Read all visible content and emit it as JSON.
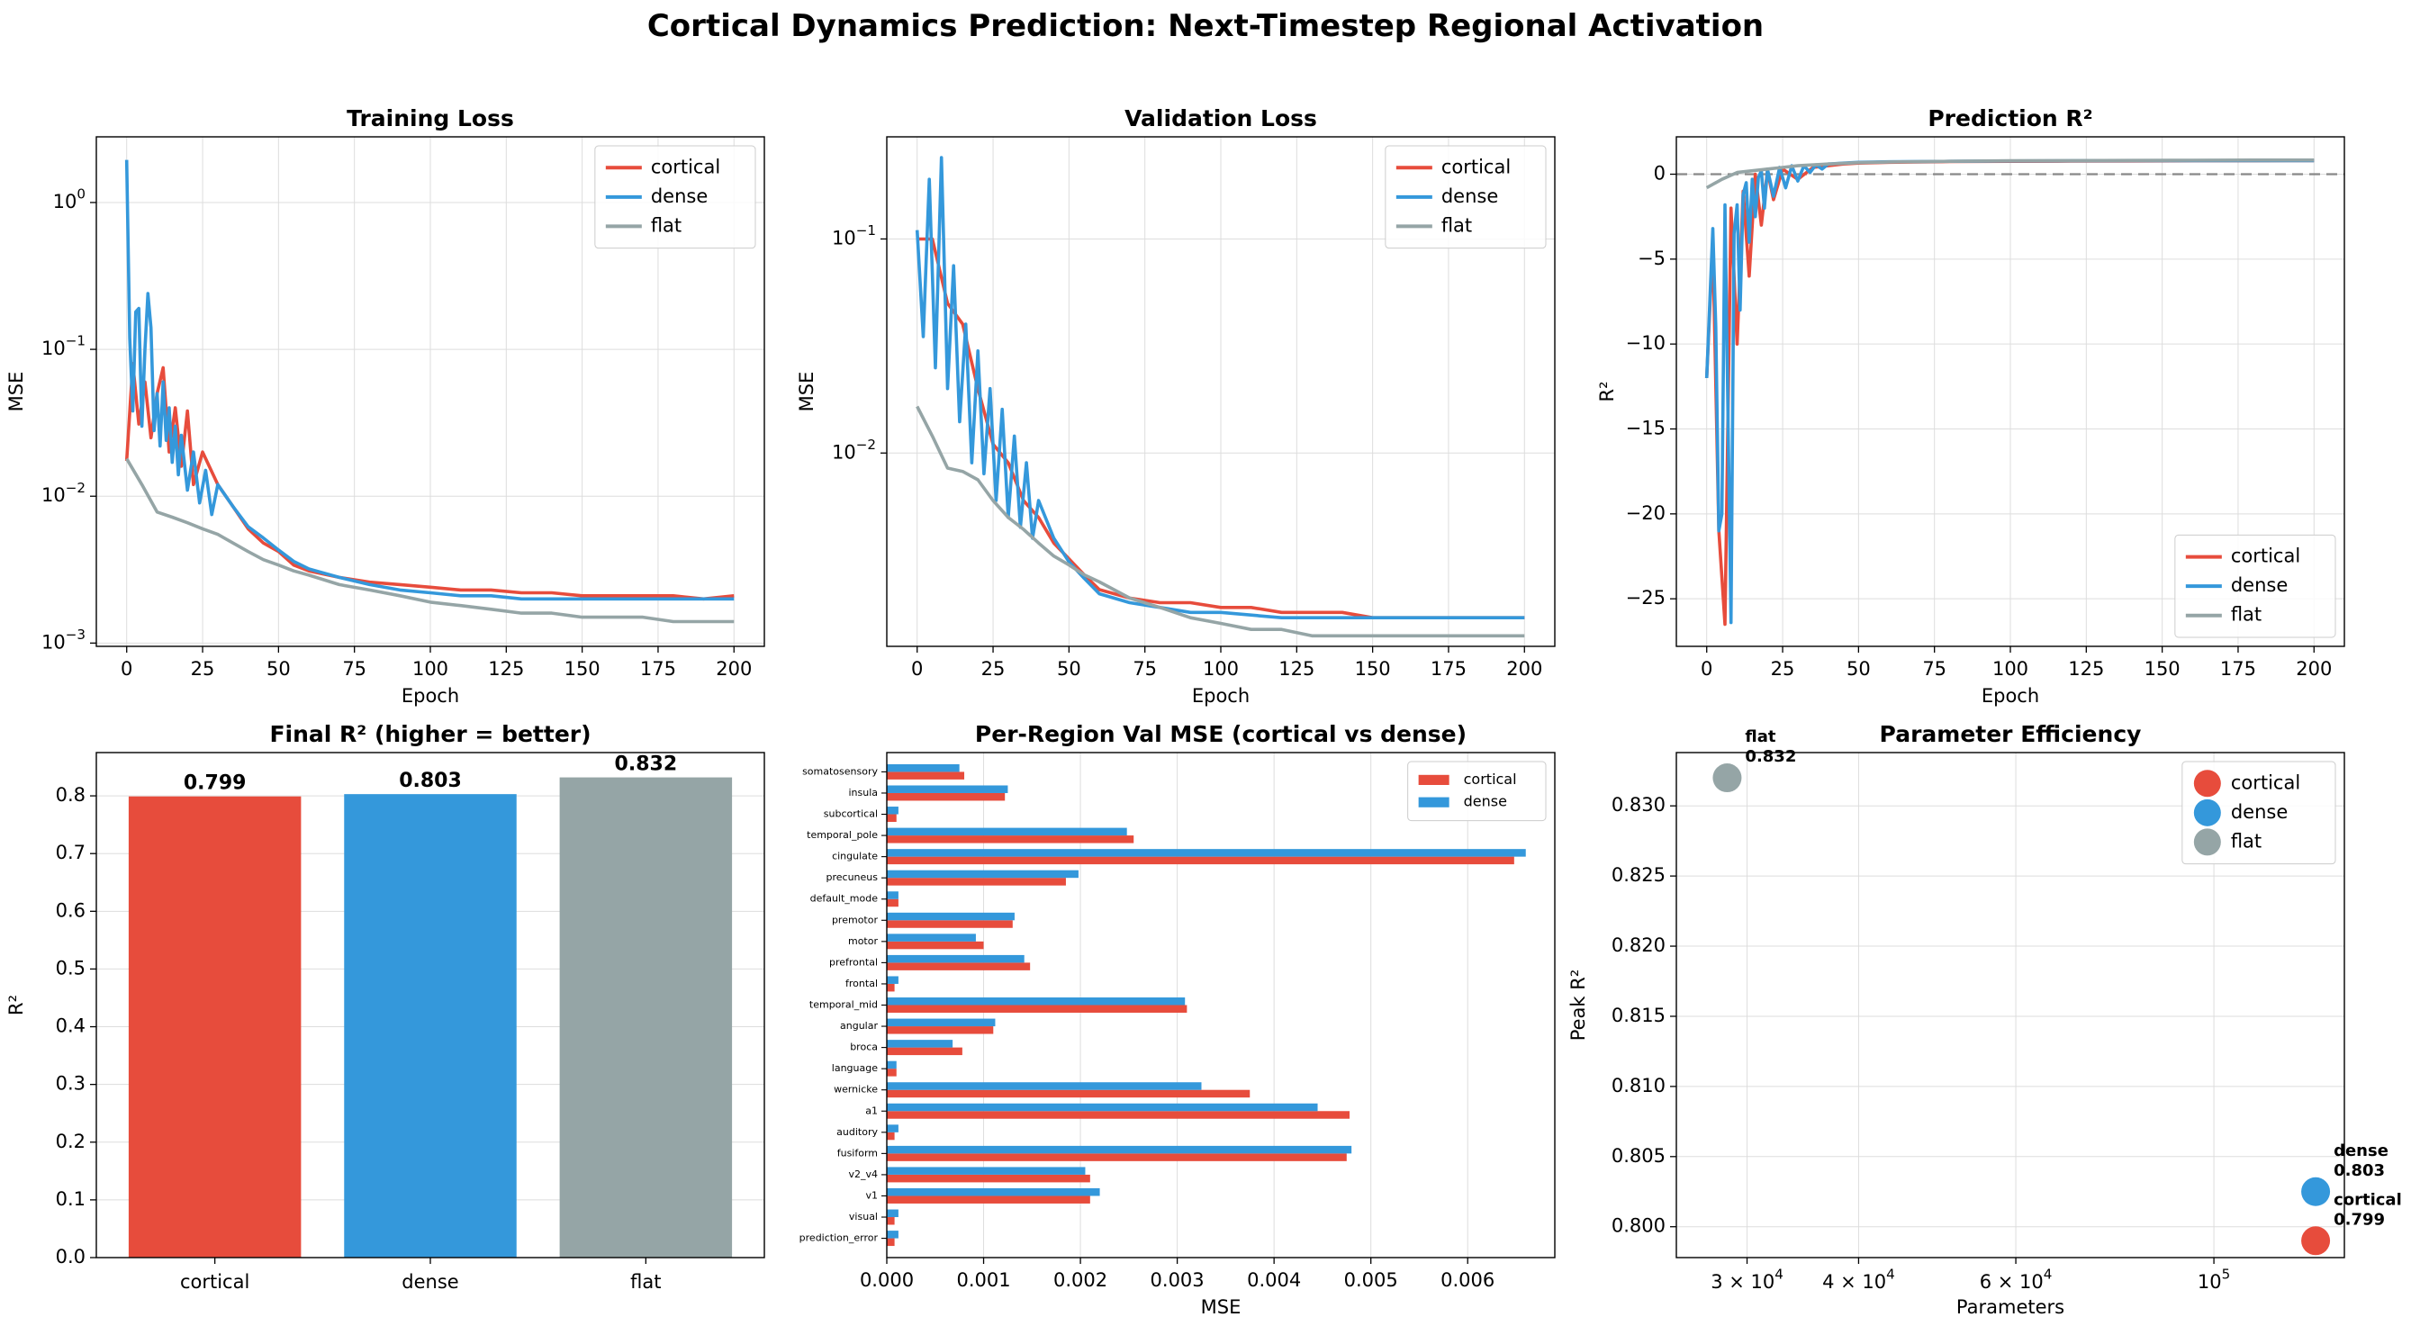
{
  "figure": {
    "suptitle": "Cortical Dynamics Prediction: Next-Timestep Regional Activation"
  },
  "colors": {
    "cortical": "#e74c3c",
    "dense": "#3498db",
    "flat": "#95a5a6",
    "grid": "#dddddd",
    "zero_line": "#888888"
  },
  "chart_data": [
    {
      "id": "training-loss",
      "type": "line",
      "title": "Training Loss",
      "xlabel": "Epoch",
      "ylabel": "MSE",
      "yscale": "log",
      "xlim": [
        -10,
        210
      ],
      "ylim": [
        0.00095,
        2.8
      ],
      "xticks": [
        0,
        25,
        50,
        75,
        100,
        125,
        150,
        175,
        200
      ],
      "yticks": [
        {
          "value": 1,
          "label": "10^0"
        },
        {
          "value": 0.1,
          "label": "10^-1"
        },
        {
          "value": 0.01,
          "label": "10^-2"
        },
        {
          "value": 0.001,
          "label": "10^-3"
        }
      ],
      "grid": true,
      "legend_position": "top-right",
      "series": [
        {
          "name": "cortical",
          "color": "cortical",
          "x": [
            0,
            2,
            4,
            6,
            8,
            10,
            12,
            14,
            16,
            18,
            20,
            22,
            25,
            30,
            35,
            40,
            45,
            50,
            55,
            60,
            70,
            80,
            90,
            100,
            110,
            120,
            130,
            140,
            150,
            160,
            170,
            180,
            190,
            200
          ],
          "y": [
            0.0174,
            0.08,
            0.031,
            0.06,
            0.025,
            0.05,
            0.075,
            0.02,
            0.04,
            0.016,
            0.038,
            0.012,
            0.02,
            0.012,
            0.0085,
            0.006,
            0.0048,
            0.0042,
            0.0034,
            0.0031,
            0.0028,
            0.0026,
            0.0025,
            0.0024,
            0.0023,
            0.0023,
            0.0022,
            0.0022,
            0.0021,
            0.0021,
            0.0021,
            0.0021,
            0.002,
            0.0021
          ]
        },
        {
          "name": "dense",
          "color": "dense",
          "x": [
            0,
            1,
            2,
            3,
            4,
            5,
            6,
            7,
            8,
            9,
            10,
            11,
            12,
            13,
            14,
            15,
            16,
            17,
            18,
            20,
            22,
            24,
            26,
            28,
            30,
            35,
            40,
            45,
            50,
            55,
            60,
            70,
            80,
            90,
            100,
            110,
            120,
            130,
            140,
            150,
            160,
            170,
            180,
            190,
            200
          ],
          "y": [
            1.95,
            0.12,
            0.038,
            0.18,
            0.19,
            0.03,
            0.1,
            0.24,
            0.14,
            0.028,
            0.05,
            0.022,
            0.06,
            0.024,
            0.04,
            0.017,
            0.03,
            0.014,
            0.026,
            0.011,
            0.02,
            0.009,
            0.015,
            0.0075,
            0.012,
            0.0085,
            0.0062,
            0.0052,
            0.0043,
            0.0036,
            0.0032,
            0.0028,
            0.0025,
            0.0023,
            0.0022,
            0.0021,
            0.0021,
            0.002,
            0.002,
            0.002,
            0.002,
            0.002,
            0.002,
            0.002,
            0.002
          ]
        },
        {
          "name": "flat",
          "color": "flat",
          "x": [
            0,
            5,
            10,
            15,
            20,
            25,
            30,
            35,
            40,
            45,
            50,
            55,
            60,
            70,
            80,
            90,
            100,
            110,
            120,
            130,
            140,
            150,
            160,
            170,
            180,
            190,
            200
          ],
          "y": [
            0.018,
            0.012,
            0.0078,
            0.0072,
            0.0066,
            0.006,
            0.0055,
            0.0048,
            0.0042,
            0.0037,
            0.0034,
            0.0031,
            0.0029,
            0.0025,
            0.0023,
            0.0021,
            0.0019,
            0.0018,
            0.0017,
            0.0016,
            0.0016,
            0.0015,
            0.0015,
            0.0015,
            0.0014,
            0.0014,
            0.0014
          ]
        }
      ]
    },
    {
      "id": "validation-loss",
      "type": "line",
      "title": "Validation Loss",
      "xlabel": "Epoch",
      "ylabel": "MSE",
      "yscale": "log",
      "xlim": [
        -10,
        210
      ],
      "ylim": [
        0.00125,
        0.3
      ],
      "xticks": [
        0,
        25,
        50,
        75,
        100,
        125,
        150,
        175,
        200
      ],
      "yticks": [
        {
          "value": 0.1,
          "label": "10^-1"
        },
        {
          "value": 0.01,
          "label": "10^-2"
        }
      ],
      "grid": true,
      "legend_position": "top-right",
      "series": [
        {
          "name": "cortical",
          "color": "cortical",
          "x": [
            0,
            5,
            10,
            15,
            20,
            25,
            30,
            35,
            40,
            45,
            50,
            55,
            60,
            70,
            80,
            90,
            100,
            110,
            120,
            130,
            140,
            150,
            160,
            170,
            180,
            190,
            200
          ],
          "y": [
            0.1,
            0.1,
            0.05,
            0.04,
            0.02,
            0.011,
            0.009,
            0.006,
            0.005,
            0.0038,
            0.0032,
            0.0027,
            0.0023,
            0.0021,
            0.002,
            0.002,
            0.0019,
            0.0019,
            0.0018,
            0.0018,
            0.0018,
            0.0017,
            0.0017,
            0.0017,
            0.0017,
            0.0017,
            0.0017
          ]
        },
        {
          "name": "dense",
          "color": "dense",
          "x": [
            0,
            2,
            4,
            6,
            8,
            10,
            12,
            14,
            16,
            18,
            20,
            22,
            24,
            26,
            28,
            30,
            32,
            34,
            36,
            38,
            40,
            45,
            50,
            55,
            60,
            70,
            80,
            90,
            100,
            120,
            140,
            160,
            180,
            200
          ],
          "y": [
            0.11,
            0.035,
            0.19,
            0.025,
            0.24,
            0.02,
            0.075,
            0.014,
            0.04,
            0.009,
            0.03,
            0.008,
            0.02,
            0.006,
            0.016,
            0.005,
            0.012,
            0.0045,
            0.009,
            0.004,
            0.006,
            0.004,
            0.0031,
            0.0026,
            0.0022,
            0.002,
            0.0019,
            0.0018,
            0.0018,
            0.0017,
            0.0017,
            0.0017,
            0.0017,
            0.0017
          ]
        },
        {
          "name": "flat",
          "color": "flat",
          "x": [
            0,
            5,
            10,
            15,
            20,
            25,
            30,
            35,
            40,
            45,
            50,
            55,
            60,
            70,
            80,
            90,
            100,
            110,
            120,
            130,
            140,
            150,
            160,
            170,
            180,
            190,
            200
          ],
          "y": [
            0.0165,
            0.012,
            0.0085,
            0.0082,
            0.0075,
            0.006,
            0.005,
            0.0044,
            0.0038,
            0.0033,
            0.003,
            0.0027,
            0.0025,
            0.0021,
            0.0019,
            0.0017,
            0.0016,
            0.0015,
            0.0015,
            0.0014,
            0.0014,
            0.0014,
            0.0014,
            0.0014,
            0.0014,
            0.0014,
            0.0014
          ]
        }
      ]
    },
    {
      "id": "prediction-r2",
      "type": "line",
      "title": "Prediction R²",
      "xlabel": "Epoch",
      "ylabel": "R²",
      "yscale": "linear",
      "xlim": [
        -10,
        210
      ],
      "ylim": [
        -27.8,
        2.2
      ],
      "xticks": [
        0,
        25,
        50,
        75,
        100,
        125,
        150,
        175,
        200
      ],
      "yticks": [
        {
          "value": 0,
          "label": "0"
        },
        {
          "value": -5,
          "label": "−5"
        },
        {
          "value": -10,
          "label": "−10"
        },
        {
          "value": -15,
          "label": "−15"
        },
        {
          "value": -20,
          "label": "−20"
        },
        {
          "value": -25,
          "label": "−25"
        }
      ],
      "grid": true,
      "reference_line": 0,
      "legend_position": "bottom-right",
      "series": [
        {
          "name": "cortical",
          "color": "cortical",
          "x": [
            0,
            2,
            4,
            6,
            8,
            10,
            12,
            14,
            16,
            18,
            20,
            22,
            25,
            30,
            35,
            40,
            45,
            50,
            60,
            80,
            100,
            120,
            140,
            160,
            180,
            200
          ],
          "y": [
            -12,
            -4,
            -21,
            -26.5,
            -2,
            -10,
            -1,
            -6,
            0,
            -3,
            0.2,
            -1.5,
            0.3,
            -0.3,
            0.4,
            0.5,
            0.6,
            0.65,
            0.7,
            0.74,
            0.76,
            0.77,
            0.78,
            0.79,
            0.79,
            0.8
          ]
        },
        {
          "name": "dense",
          "color": "dense",
          "x": [
            0,
            2,
            3,
            4,
            5,
            6,
            7,
            8,
            9,
            10,
            11,
            12,
            13,
            14,
            15,
            16,
            17,
            18,
            19,
            20,
            22,
            24,
            26,
            28,
            30,
            32,
            34,
            36,
            38,
            40,
            45,
            50,
            60,
            80,
            100,
            120,
            140,
            160,
            180,
            200
          ],
          "y": [
            -12,
            -3.2,
            -9,
            -21,
            -20,
            -1.8,
            -14,
            -26.4,
            -3.5,
            -1.8,
            -8,
            -1.2,
            -0.5,
            -4,
            -0.3,
            -2.5,
            -0.2,
            0.2,
            -2,
            0.3,
            -1.3,
            0.4,
            -0.8,
            0.5,
            -0.4,
            0.5,
            0.1,
            0.55,
            0.3,
            0.6,
            0.65,
            0.7,
            0.73,
            0.76,
            0.78,
            0.79,
            0.8,
            0.8,
            0.8,
            0.8
          ]
        },
        {
          "name": "flat",
          "color": "flat",
          "x": [
            0,
            5,
            10,
            15,
            20,
            25,
            30,
            40,
            50,
            60,
            80,
            100,
            120,
            140,
            160,
            180,
            200
          ],
          "y": [
            -0.8,
            -0.3,
            0.1,
            0.2,
            0.3,
            0.4,
            0.5,
            0.6,
            0.68,
            0.72,
            0.76,
            0.79,
            0.8,
            0.81,
            0.82,
            0.83,
            0.83
          ]
        }
      ]
    },
    {
      "id": "final-r2",
      "type": "bar",
      "title": "Final R² (higher = better)",
      "xlabel": "",
      "ylabel": "R²",
      "ylim": [
        0,
        0.875
      ],
      "yticks": [
        0.0,
        0.1,
        0.2,
        0.3,
        0.4,
        0.5,
        0.6,
        0.7,
        0.8
      ],
      "grid": true,
      "categories": [
        "cortical",
        "dense",
        "flat"
      ],
      "values": [
        0.799,
        0.803,
        0.832
      ],
      "value_labels": [
        "0.799",
        "0.803",
        "0.832"
      ],
      "bar_colors": [
        "cortical",
        "dense",
        "flat"
      ]
    },
    {
      "id": "per-region-mse",
      "type": "bar",
      "orientation": "horizontal",
      "title": "Per-Region Val MSE (cortical vs dense)",
      "xlabel": "MSE",
      "ylabel": "",
      "xlim": [
        0,
        0.0069
      ],
      "xticks": [
        {
          "value": 0,
          "label": "0.000"
        },
        {
          "value": 0.001,
          "label": "0.001"
        },
        {
          "value": 0.002,
          "label": "0.002"
        },
        {
          "value": 0.003,
          "label": "0.003"
        },
        {
          "value": 0.004,
          "label": "0.004"
        },
        {
          "value": 0.005,
          "label": "0.005"
        },
        {
          "value": 0.006,
          "label": "0.006"
        }
      ],
      "grid": true,
      "legend_position": "top-right",
      "categories": [
        "prediction_error",
        "visual",
        "v1",
        "v2_v4",
        "fusiform",
        "auditory",
        "a1",
        "wernicke",
        "language",
        "broca",
        "angular",
        "temporal_mid",
        "frontal",
        "prefrontal",
        "motor",
        "premotor",
        "default_mode",
        "precuneus",
        "cingulate",
        "temporal_pole",
        "subcortical",
        "insula",
        "somatosensory"
      ],
      "series": [
        {
          "name": "cortical",
          "color": "cortical",
          "values": [
            8e-05,
            8e-05,
            0.0021,
            0.0021,
            0.00475,
            8e-05,
            0.00478,
            0.00375,
            0.0001,
            0.00078,
            0.0011,
            0.0031,
            8e-05,
            0.00148,
            0.001,
            0.0013,
            0.00012,
            0.00185,
            0.00648,
            0.00255,
            0.0001,
            0.00122,
            0.0008
          ]
        },
        {
          "name": "dense",
          "color": "dense",
          "values": [
            0.00012,
            0.00012,
            0.0022,
            0.00205,
            0.0048,
            0.00012,
            0.00445,
            0.00325,
            0.0001,
            0.00068,
            0.00112,
            0.00308,
            0.00012,
            0.00142,
            0.00092,
            0.00132,
            0.00012,
            0.00198,
            0.0066,
            0.00248,
            0.00012,
            0.00125,
            0.00075
          ]
        }
      ]
    },
    {
      "id": "parameter-efficiency",
      "type": "scatter",
      "title": "Parameter Efficiency",
      "xlabel": "Parameters",
      "ylabel": "Peak R²",
      "xscale": "log",
      "xlim": [
        25000,
        140000
      ],
      "ylim": [
        0.7978,
        0.8338
      ],
      "xticks": [
        {
          "value": 30000,
          "label": "3 × 10^4"
        },
        {
          "value": 40000,
          "label": "4 × 10^4"
        },
        {
          "value": 60000,
          "label": "6 × 10^4"
        },
        {
          "value": 100000,
          "label": "10^5"
        }
      ],
      "yticks": [
        0.8,
        0.805,
        0.81,
        0.815,
        0.82,
        0.825,
        0.83
      ],
      "grid": true,
      "legend_position": "top-right",
      "points": [
        {
          "name": "cortical",
          "color": "cortical",
          "x": 130000,
          "y": 0.799,
          "label_name": "cortical",
          "label_value": "0.799"
        },
        {
          "name": "dense",
          "color": "dense",
          "x": 130000,
          "y": 0.8025,
          "label_name": "dense",
          "label_value": "0.803"
        },
        {
          "name": "flat",
          "color": "flat",
          "x": 28500,
          "y": 0.832,
          "label_name": "flat",
          "label_value": "0.832"
        }
      ]
    }
  ]
}
